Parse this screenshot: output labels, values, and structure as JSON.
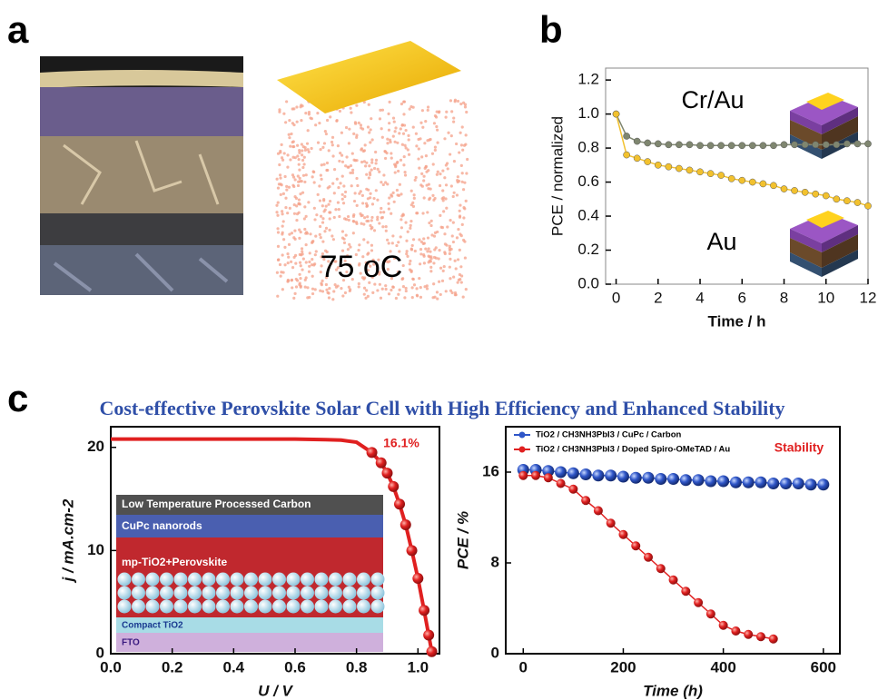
{
  "panel_labels": [
    "a",
    "b",
    "c"
  ],
  "panel_a": {
    "caption": "75 oC"
  },
  "panel_c_title": "Cost-effective Perovskite Solar Cell with High Efficiency and Enhanced Stability",
  "chart_data": [
    {
      "type": "line",
      "x_label": "Time / h",
      "y_label": "PCE / normalized",
      "x": [
        0,
        0.5,
        1,
        1.5,
        2,
        2.5,
        3,
        3.5,
        4,
        4.5,
        5,
        5.5,
        6,
        6.5,
        7,
        7.5,
        8,
        8.5,
        9,
        9.5,
        10,
        10.5,
        11,
        11.5,
        12
      ],
      "series": [
        {
          "name": "Cr/Au",
          "color": "#7f8670",
          "values": [
            1.0,
            0.87,
            0.84,
            0.83,
            0.825,
            0.82,
            0.82,
            0.82,
            0.815,
            0.815,
            0.815,
            0.815,
            0.815,
            0.815,
            0.815,
            0.815,
            0.82,
            0.82,
            0.82,
            0.82,
            0.82,
            0.82,
            0.825,
            0.825,
            0.825
          ]
        },
        {
          "name": "Au",
          "color": "#f2c12e",
          "values": [
            1.0,
            0.76,
            0.74,
            0.72,
            0.7,
            0.69,
            0.68,
            0.67,
            0.66,
            0.65,
            0.64,
            0.62,
            0.61,
            0.6,
            0.59,
            0.58,
            0.56,
            0.55,
            0.54,
            0.53,
            0.52,
            0.5,
            0.49,
            0.48,
            0.46
          ]
        }
      ],
      "markers": true,
      "xlim": [
        -0.5,
        12
      ],
      "ylim": [
        0,
        1.27
      ],
      "xticks": [
        0,
        2,
        4,
        6,
        8,
        10,
        12
      ],
      "yticks": [
        {
          "value": 0,
          "label": "0.0"
        },
        0.2,
        0.4,
        0.6,
        0.8,
        {
          "value": 1,
          "label": "1.0"
        },
        1.2
      ]
    },
    {
      "type": "line",
      "x_label": "U / V",
      "y_label": "j / mA.cm-2",
      "annotation": "16.1%",
      "inset_layers": [
        "Low Temperature Processed Carbon",
        "CuPc nanorods",
        "mp-TiO2+Perovskite",
        "Compact TiO2",
        "FTO"
      ],
      "x": [
        0,
        0.1,
        0.2,
        0.3,
        0.4,
        0.5,
        0.6,
        0.7,
        0.75,
        0.8,
        0.85,
        0.88,
        0.9,
        0.92,
        0.94,
        0.96,
        0.98,
        1.0,
        1.02,
        1.035,
        1.045
      ],
      "values": [
        20.8,
        20.8,
        20.8,
        20.8,
        20.8,
        20.8,
        20.8,
        20.75,
        20.7,
        20.5,
        19.5,
        18.5,
        17.5,
        16.2,
        14.5,
        12.5,
        10.0,
        7.3,
        4.2,
        1.8,
        0.2
      ],
      "color": "#e02020",
      "markers": true,
      "xlim": [
        0,
        1.07
      ],
      "ylim": [
        0,
        22
      ],
      "xticks": [
        {
          "value": 0,
          "label": "0.0"
        },
        0.2,
        0.4,
        0.6,
        0.8,
        {
          "value": 1,
          "label": "1.0"
        }
      ],
      "yticks": [
        0,
        10,
        20
      ]
    },
    {
      "type": "line",
      "x_label": "Time (h)",
      "y_label": "PCE / %",
      "annotation": "Stability",
      "x": [
        0,
        25,
        50,
        75,
        100,
        125,
        150,
        175,
        200,
        225,
        250,
        275,
        300,
        325,
        350,
        375,
        400,
        425,
        450,
        475,
        500,
        525,
        550,
        575,
        600
      ],
      "series": [
        {
          "name": "TiO2 / CH3NH3PbI3 / CuPc / Carbon",
          "color": "#2f56c8",
          "values": [
            16.2,
            16.2,
            16.1,
            16.0,
            15.9,
            15.8,
            15.7,
            15.7,
            15.6,
            15.5,
            15.5,
            15.4,
            15.4,
            15.3,
            15.3,
            15.2,
            15.2,
            15.1,
            15.1,
            15.1,
            15.0,
            15.0,
            15.0,
            14.9,
            14.9
          ]
        },
        {
          "name": "TiO2 / CH3NH3PbI3 / Doped Spiro-OMeTAD / Au",
          "color": "#e02020",
          "values": [
            15.7,
            15.7,
            15.5,
            15.0,
            14.5,
            13.5,
            12.6,
            11.5,
            10.5,
            9.5,
            8.5,
            7.5,
            6.5,
            5.5,
            4.5,
            3.5,
            2.5,
            2.0,
            1.7,
            1.5,
            1.3,
            null,
            null,
            null,
            null
          ]
        }
      ],
      "markers": true,
      "xlim": [
        -35,
        633
      ],
      "ylim": [
        0,
        20
      ],
      "xticks": [
        0,
        200,
        400,
        600
      ],
      "yticks": [
        0,
        8,
        16
      ]
    }
  ]
}
